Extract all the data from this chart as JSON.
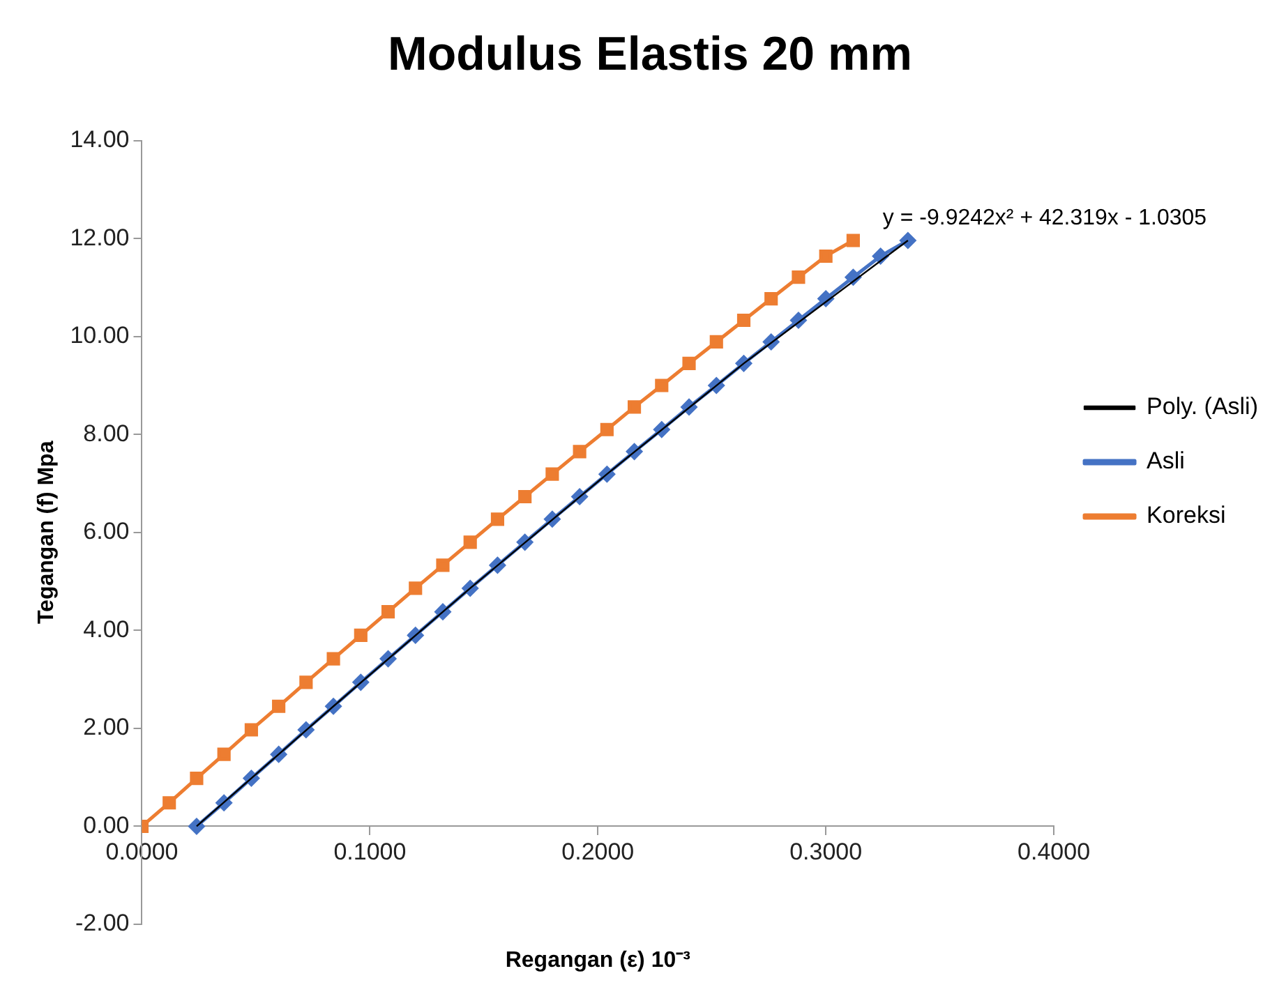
{
  "chart_data": {
    "type": "line",
    "title": "Modulus Elastis 20 mm",
    "xlabel": "Regangan (ε) 10⁻³",
    "ylabel": "Tegangan (f) Mpa",
    "xlim": [
      0,
      0.4
    ],
    "xticks": [
      {
        "value": 0,
        "label": "0.0000"
      },
      {
        "value": 0.1,
        "label": "0.1000"
      },
      {
        "value": 0.2,
        "label": "0.2000"
      },
      {
        "value": 0.3,
        "label": "0.3000"
      },
      {
        "value": 0.4,
        "label": "0.4000"
      }
    ],
    "ylim": [
      -2,
      14
    ],
    "yticks": [
      {
        "value": -2,
        "label": "-2.00"
      },
      {
        "value": 0,
        "label": "0.00"
      },
      {
        "value": 2,
        "label": "2.00"
      },
      {
        "value": 4,
        "label": "4.00"
      },
      {
        "value": 6,
        "label": "6.00"
      },
      {
        "value": 8,
        "label": "8.00"
      },
      {
        "value": 10,
        "label": "10.00"
      },
      {
        "value": 12,
        "label": "12.00"
      },
      {
        "value": 14,
        "label": "14.00"
      }
    ],
    "grid": false,
    "legend": "right",
    "line_style": "solid",
    "series": [
      {
        "name": "Asli",
        "color": "#4472c4",
        "marker": "diamond",
        "x": [
          0.024,
          0.036,
          0.048,
          0.06,
          0.072,
          0.084,
          0.096,
          0.108,
          0.12,
          0.132,
          0.144,
          0.156,
          0.168,
          0.18,
          0.192,
          0.204,
          0.216,
          0.228,
          0.24,
          0.252,
          0.264,
          0.276,
          0.288,
          0.3,
          0.312,
          0.324,
          0.336
        ],
        "values": [
          0,
          0.48,
          0.98,
          1.47,
          1.97,
          2.45,
          2.94,
          3.42,
          3.9,
          4.38,
          4.86,
          5.33,
          5.8,
          6.27,
          6.73,
          7.19,
          7.65,
          8.1,
          8.56,
          9,
          9.45,
          9.89,
          10.33,
          10.77,
          11.21,
          11.64,
          11.96
        ]
      },
      {
        "name": "Koreksi",
        "color": "#ed7d31",
        "marker": "square",
        "x": [
          0,
          0.012,
          0.024,
          0.036,
          0.048,
          0.06,
          0.072,
          0.084,
          0.096,
          0.108,
          0.12,
          0.132,
          0.144,
          0.156,
          0.168,
          0.18,
          0.192,
          0.204,
          0.216,
          0.228,
          0.24,
          0.252,
          0.264,
          0.276,
          0.288,
          0.3,
          0.312
        ],
        "values": [
          0,
          0.48,
          0.98,
          1.47,
          1.97,
          2.45,
          2.94,
          3.42,
          3.9,
          4.38,
          4.86,
          5.33,
          5.8,
          6.27,
          6.73,
          7.19,
          7.65,
          8.1,
          8.56,
          9,
          9.45,
          9.89,
          10.33,
          10.77,
          11.21,
          11.64,
          11.96
        ]
      },
      {
        "name": "Poly. (Asli)",
        "color": "#000000",
        "marker": "none",
        "x": [
          0.024,
          0.084,
          0.144,
          0.204,
          0.264,
          0.336
        ],
        "values": [
          0,
          2.45,
          4.86,
          7.19,
          9.45,
          11.96
        ]
      }
    ],
    "annotations": [
      {
        "text": "y = -9.9242x² + 42.319x - 1.0305",
        "x": 0.336,
        "y": 11.96
      }
    ]
  }
}
